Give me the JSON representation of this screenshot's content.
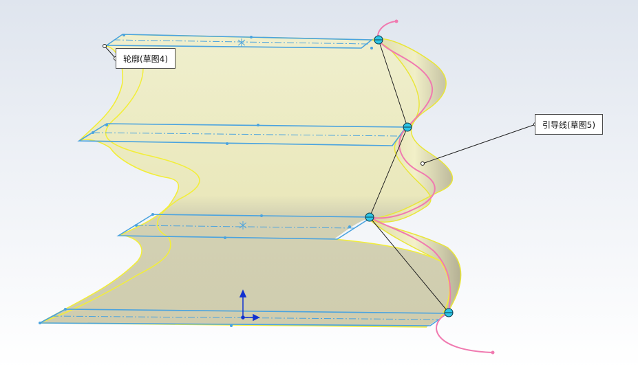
{
  "viewport": {
    "background_top": "#dfe5ee",
    "background_bottom": "#ffffff"
  },
  "callouts": {
    "profile_label": "轮廓(草图4)",
    "guide_label": "引导线(草图5)"
  },
  "colors": {
    "surface_light": "#f0efb4",
    "surface_shade": "#b9b592",
    "edge": "#f2ee3a",
    "sketch_line": "#4aa3df",
    "guide_curve": "#f07ab0",
    "handle": "#2ec6e6",
    "leader": "#222222",
    "axis_arrow": "#1030d0"
  },
  "icons": {
    "handle": "circle-handle-icon",
    "origin": "triad-origin-icon"
  }
}
